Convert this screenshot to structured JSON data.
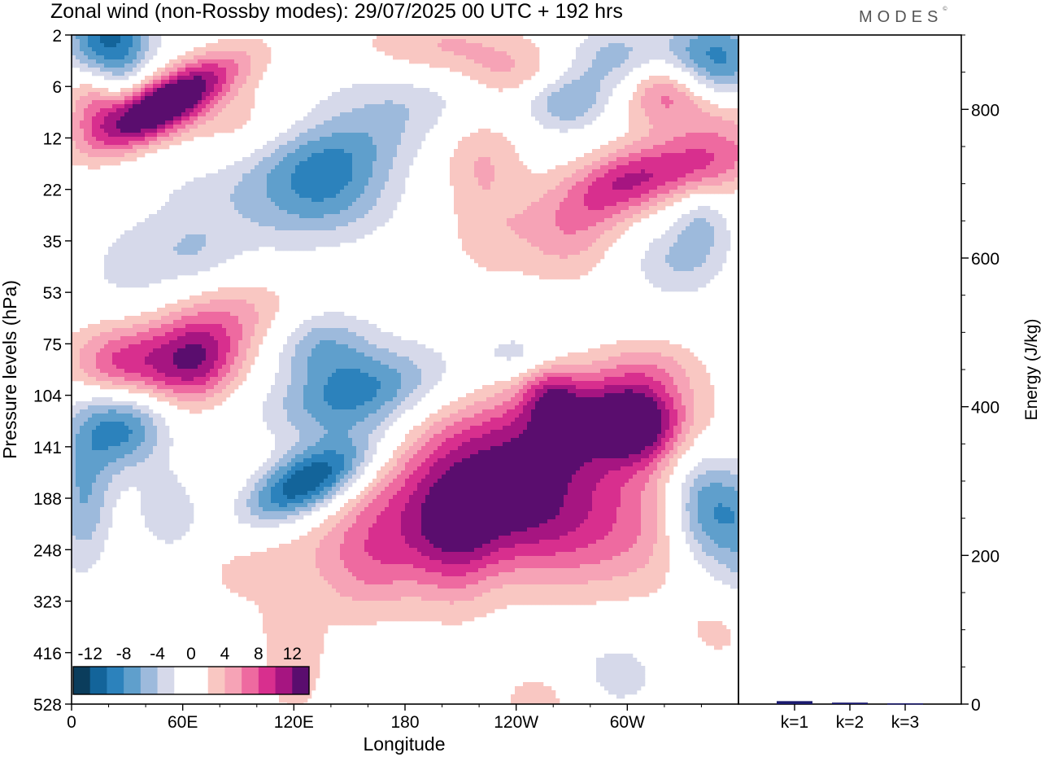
{
  "title": "Zonal wind (non-Rossby modes):  29/07/2025  00 UTC  + 192 hrs",
  "brand": {
    "name": "MODES",
    "mark": "©"
  },
  "chart_data": [
    {
      "type": "heatmap",
      "title": "Zonal wind (non-Rossby modes):  29/07/2025  00 UTC  + 192 hrs",
      "xlabel": "Longitude",
      "ylabel": "Pressure levels (hPa)",
      "x_ticks": [
        "0",
        "60E",
        "120E",
        "180",
        "120W",
        "60W"
      ],
      "y_ticks": [
        "2",
        "6",
        "12",
        "22",
        "35",
        "53",
        "75",
        "104",
        "141",
        "188",
        "248",
        "323",
        "416",
        "528"
      ],
      "colorbar": {
        "labels": [
          "-12",
          "-8",
          "-4",
          "0",
          "4",
          "8",
          "12"
        ],
        "levels": [
          -14,
          -12,
          -10,
          -8,
          -6,
          -4,
          -2,
          0,
          2,
          4,
          6,
          8,
          10,
          12,
          14
        ],
        "colors": [
          "#0b3d5c",
          "#13649a",
          "#2c82bc",
          "#5f9fcc",
          "#9dbadc",
          "#d6d9ea",
          "#ffffff",
          "#ffffff",
          "#f9c7c2",
          "#f6a3b6",
          "#ee6aa0",
          "#d82f8e",
          "#a61581",
          "#5a0d6e"
        ]
      },
      "features": [
        {
          "lon": 20,
          "lev": 1.3,
          "value": -9
        },
        {
          "lon": 35,
          "lev": 2.3,
          "value": 9
        },
        {
          "lon": 95,
          "lev": 8.7,
          "value": -14
        },
        {
          "lon": 110,
          "lev": 5.6,
          "value": -6
        },
        {
          "lon": 40,
          "lev": 7.4,
          "value": 6
        },
        {
          "lon": 160,
          "lev": 9.0,
          "value": 7
        },
        {
          "lon": 200,
          "lev": 8.5,
          "value": 6
        },
        {
          "lon": 230,
          "lev": 7.8,
          "value": 8
        },
        {
          "lon": 300,
          "lev": 10.0,
          "value": -6
        },
        {
          "lon": 332,
          "lev": 9.2,
          "value": -7
        },
        {
          "lon": 300,
          "lev": 2.8,
          "value": 6
        },
        {
          "lon": 320,
          "lev": 1.2,
          "value": -8
        }
      ]
    },
    {
      "type": "bar",
      "ylabel": "Energy (J/kg)",
      "categories": [
        "k=1",
        "k=2",
        "k=3"
      ],
      "values": [
        4,
        2,
        1
      ],
      "ylim": [
        0,
        900
      ],
      "y_ticks": [
        0,
        200,
        400,
        600,
        800
      ],
      "bar_color": "#1a1a6e"
    }
  ]
}
